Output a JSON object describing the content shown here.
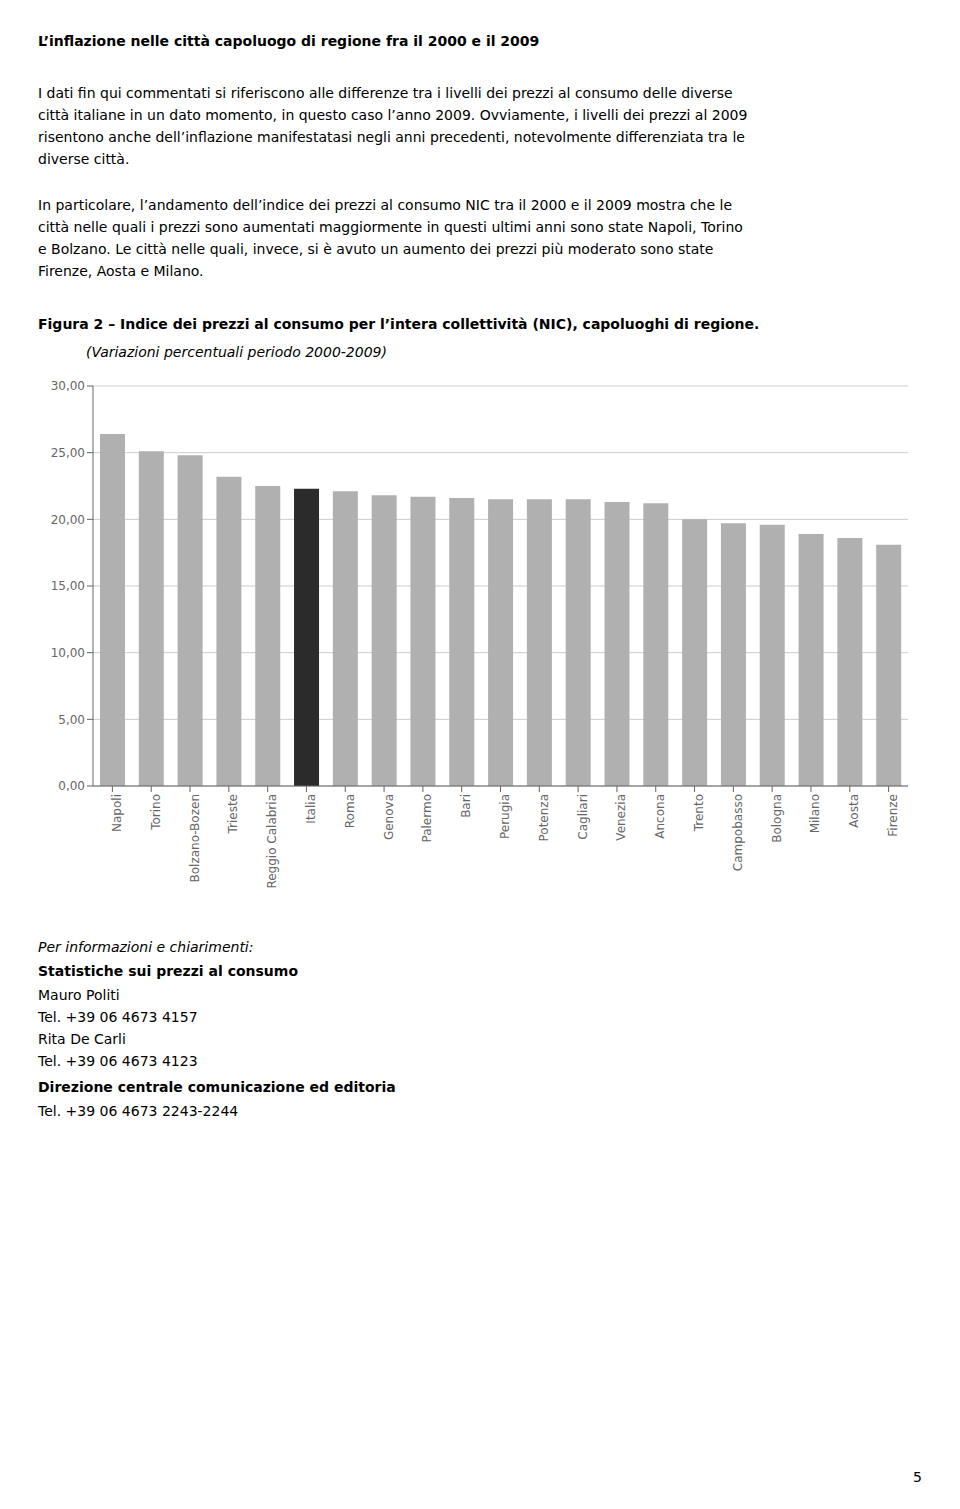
{
  "chart_data": {
    "type": "bar",
    "title": "Figura 2 – Indice dei prezzi al consumo per l’intera collettività (NIC), capoluoghi di regione.",
    "subtitle": "(Variazioni percentuali periodo 2000-2009)",
    "annotations": [
      [
        "L’inflazione nelle città capoluogo di regione fra il 2000 e il 2009"
      ],
      [
        "I dati fin qui commentati si riferiscono alle differenze tra i livelli dei prezzi al consumo delle diverse",
        "città italiane in un dato momento, in questo caso l’anno 2009. Ovviamente, i livelli dei prezzi al 2009",
        "risentono anche dell’inflazione manifestatasi negli anni precedenti, notevolmente differenziata tra le",
        "diverse città."
      ],
      [
        "In particolare, l’andamento dell’indice dei prezzi al consumo NIC tra il 2000 e il 2009 mostra che le",
        "città nelle quali i prezzi sono aumentati maggiormente in questi ultimi anni sono state Napoli, Torino",
        "e Bolzano. Le città nelle quali, invece, si è avuto un aumento dei prezzi più moderato sono state",
        "Firenze, Aosta e Milano."
      ],
      [
        "Per informazioni e chiarimenti:"
      ],
      [
        "Statistiche sui prezzi al consumo"
      ],
      [
        "Mauro Politi",
        "Tel. +39 06 4673 4157",
        "Rita De Carli",
        "Tel. +39 06 4673 4123"
      ],
      [
        "Direzione centrale comunicazione ed editoria"
      ],
      [
        "Tel. +39 06 4673 2243-2244"
      ],
      [
        "5"
      ]
    ],
    "categories": [
      "Napoli",
      "Torino",
      "Bolzano-Bozen",
      "Trieste",
      "Reggio Calabria",
      "Italia",
      "Roma",
      "Genova",
      "Palermo",
      "Bari",
      "Perugia",
      "Potenza",
      "Cagliari",
      "Venezia",
      "Ancona",
      "Trento",
      "Campobasso",
      "Bologna",
      "Milano",
      "Aosta",
      "Firenze"
    ],
    "values": [
      26.4,
      25.1,
      24.8,
      23.2,
      22.5,
      22.3,
      22.1,
      21.8,
      21.7,
      21.6,
      21.5,
      21.5,
      21.5,
      21.3,
      21.2,
      20.0,
      19.7,
      19.6,
      18.9,
      18.6,
      18.1
    ],
    "colors": [
      "#b0b0b0",
      "#b0b0b0",
      "#b0b0b0",
      "#b0b0b0",
      "#b0b0b0",
      "#2b2b2b",
      "#b0b0b0",
      "#b0b0b0",
      "#b0b0b0",
      "#b0b0b0",
      "#b0b0b0",
      "#b0b0b0",
      "#b0b0b0",
      "#b0b0b0",
      "#b0b0b0",
      "#b0b0b0",
      "#b0b0b0",
      "#b0b0b0",
      "#b0b0b0",
      "#b0b0b0",
      "#b0b0b0"
    ],
    "ylim": [
      0,
      30
    ],
    "yticks": [
      {
        "value": 0,
        "label": "0,00"
      },
      {
        "value": 5,
        "label": "5,00"
      },
      {
        "value": 10,
        "label": "10,00"
      },
      {
        "value": 15,
        "label": "15,00"
      },
      {
        "value": 20,
        "label": "20,00"
      },
      {
        "value": 25,
        "label": "25,00"
      },
      {
        "value": 30,
        "label": "30,00"
      }
    ],
    "grid": true
  }
}
